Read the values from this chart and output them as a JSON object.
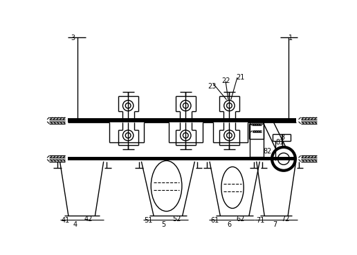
{
  "bg_color": "#ffffff",
  "line_color": "#000000",
  "figsize": [
    5.16,
    3.69
  ],
  "dpi": 100,
  "lw": 1.0,
  "lw_thick": 3.0,
  "lw_med": 1.5
}
